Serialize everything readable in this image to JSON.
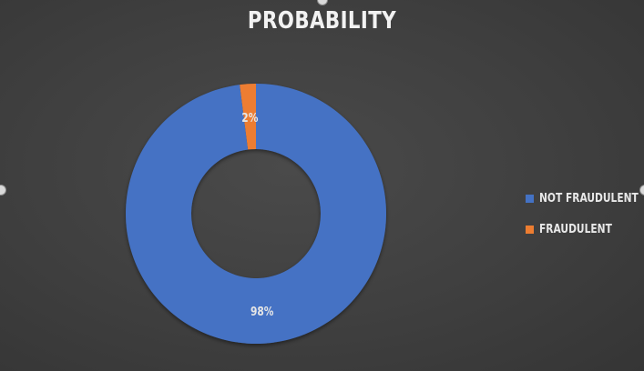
{
  "chart_data": {
    "type": "pie",
    "title": "PROBABILITY",
    "categories": [
      "NOT FRAUDULENT",
      "FRAUDULENT"
    ],
    "values": [
      98,
      2
    ],
    "labels": [
      "98%",
      "2%"
    ],
    "colors": [
      "#4472c4",
      "#ed7d31"
    ],
    "donut": true,
    "legend_position": "right"
  }
}
